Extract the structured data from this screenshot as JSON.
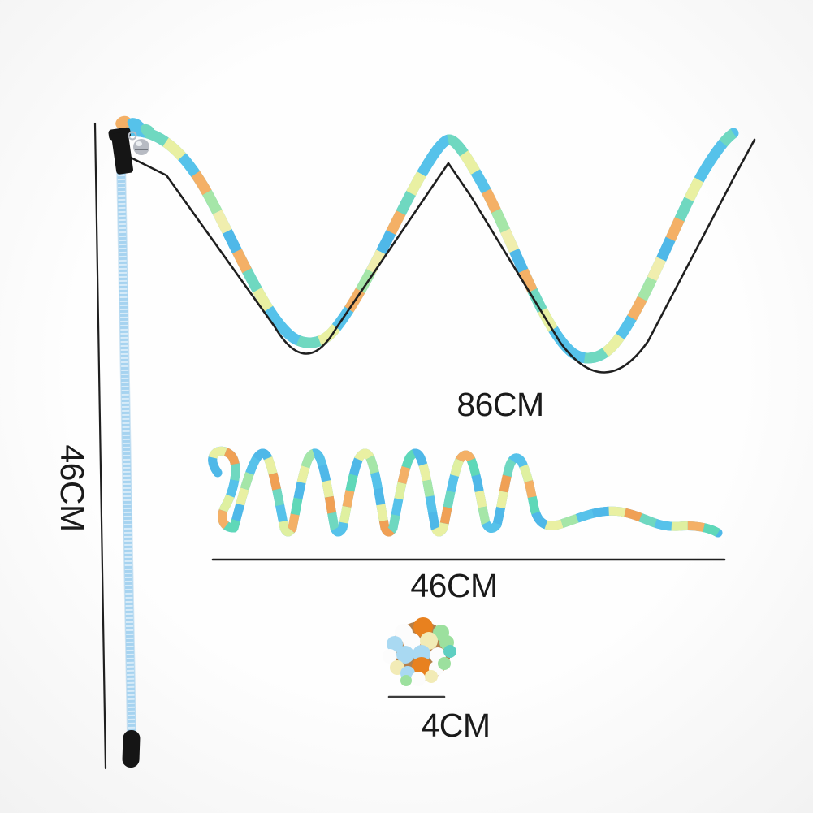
{
  "labels": {
    "wand_length": "46CM",
    "ribbon_length": "86CM",
    "spring_length": "46CM",
    "ball_diameter": "4CM"
  },
  "colors": {
    "background": "#fdfdfd",
    "measure_line": "#1f1f1f",
    "ball_measure_line": "#3c3c3c",
    "label_text": "#1a1a1a",
    "wand_shaft": "#a6d3f0",
    "wand_shaft_edge": "#7db8e0",
    "wand_shaft_sparkle": "#ffffff",
    "wand_cap": "#151515",
    "bell": "#b7bbc3",
    "bell_highlight": "#eceff2",
    "bell_slit": "#5a5e66",
    "ribbon_palette": [
      "#56c2ea",
      "#6fd8c0",
      "#e9f0a2",
      "#56c2ea",
      "#f4b066",
      "#a5e6a8",
      "#f0eeae",
      "#4fb8e8",
      "#f4b066",
      "#6fd8c0",
      "#e9f0a2",
      "#56c2ea"
    ],
    "spring_palette": [
      "#4fb8e8",
      "#e9f0a2",
      "#f0a055",
      "#6fd8c0",
      "#56c2ea",
      "#dff0a0",
      "#f4b066",
      "#5fd8b8",
      "#4fb8e8",
      "#e9f0a2",
      "#a5e6a8",
      "#56c2ea"
    ],
    "ball_backdrop": "#b5804a",
    "ball_pompom_colors": {
      "white": "#fcfcfc",
      "orange": "#e8811f",
      "green": "#9ce09e",
      "cream": "#f2ebb6",
      "blue": "#a9d9f2",
      "teal": "#5fcfc2"
    }
  }
}
